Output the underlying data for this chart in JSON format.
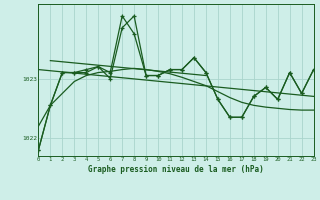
{
  "title": "Graphe pression niveau de la mer (hPa)",
  "background_color": "#ceeee8",
  "grid_color": "#aad4cc",
  "line_color": "#1a5c20",
  "x_min": 0,
  "x_max": 23,
  "y_min": 1021.7,
  "y_max": 1024.25,
  "y_ticks": [
    1022,
    1023
  ],
  "x_ticks": [
    0,
    1,
    2,
    3,
    4,
    5,
    6,
    7,
    8,
    9,
    10,
    11,
    12,
    13,
    14,
    15,
    16,
    17,
    18,
    19,
    20,
    21,
    22,
    23
  ],
  "series1_x": [
    0,
    1,
    2,
    3,
    4,
    5,
    6,
    7,
    8,
    9,
    10,
    11,
    12,
    13,
    14,
    15,
    16,
    17,
    18,
    19,
    20,
    21,
    22,
    23
  ],
  "series1_y": [
    1021.8,
    1022.55,
    1023.1,
    1023.1,
    1023.1,
    1023.2,
    1023.1,
    1024.05,
    1023.75,
    1023.05,
    1023.05,
    1023.15,
    1023.15,
    1023.35,
    1023.1,
    1022.65,
    1022.35,
    1022.35,
    1022.7,
    1022.85,
    1022.65,
    1023.1,
    1022.75,
    1023.15
  ],
  "series2_x": [
    0,
    1,
    2,
    3,
    4,
    5,
    6,
    7,
    8,
    9,
    10,
    11,
    12,
    13,
    14,
    15,
    16,
    17,
    18,
    19,
    20,
    21,
    22,
    23
  ],
  "series2_y": [
    1021.8,
    1022.55,
    1023.1,
    1023.1,
    1023.15,
    1023.2,
    1023.0,
    1023.85,
    1024.05,
    1023.05,
    1023.05,
    1023.15,
    1023.15,
    1023.35,
    1023.1,
    1022.65,
    1022.35,
    1022.35,
    1022.7,
    1022.85,
    1022.65,
    1023.1,
    1022.75,
    1023.15
  ],
  "trend_x": [
    1,
    14
  ],
  "trend_y": [
    1023.3,
    1023.05
  ],
  "trend2_x": [
    0,
    23
  ],
  "trend2_y": [
    1023.15,
    1022.7
  ],
  "smooth_x": [
    0,
    1,
    2,
    3,
    4,
    5,
    6,
    7,
    8,
    9,
    10,
    11,
    12,
    13,
    14,
    15,
    16,
    17,
    18,
    19,
    20,
    21,
    22,
    23
  ],
  "smooth_y": [
    1022.2,
    1022.55,
    1022.75,
    1022.95,
    1023.05,
    1023.1,
    1023.12,
    1023.15,
    1023.17,
    1023.15,
    1023.12,
    1023.08,
    1023.02,
    1022.95,
    1022.88,
    1022.78,
    1022.68,
    1022.6,
    1022.55,
    1022.52,
    1022.5,
    1022.48,
    1022.47,
    1022.47
  ]
}
